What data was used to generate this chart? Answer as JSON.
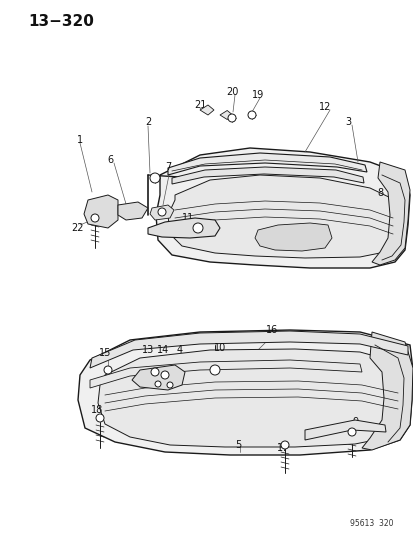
{
  "title": "13−320",
  "watermark": "95613  320",
  "bg_color": "#ffffff",
  "line_color": "#1a1a1a",
  "text_color": "#111111",
  "fig_width": 4.14,
  "fig_height": 5.33,
  "dpi": 100,
  "font_size_title": 11,
  "font_size_labels": 7,
  "font_size_watermark": 5.5
}
